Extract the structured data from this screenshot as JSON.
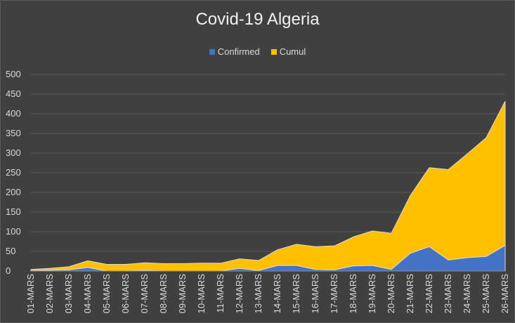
{
  "chart_data": {
    "type": "area",
    "title": "Covid-19 Algeria",
    "xlabel": "",
    "ylabel": "",
    "ylim": [
      0,
      500
    ],
    "yticks": [
      0,
      50,
      100,
      150,
      200,
      250,
      300,
      350,
      400,
      450,
      500
    ],
    "grid": true,
    "legend_position": "top",
    "categories": [
      "01-MARS",
      "02-MARS",
      "03-MARS",
      "04-MARS",
      "05-MARS",
      "06-MARS",
      "07-MARS",
      "08-MARS",
      "09-MARS",
      "10-MARS",
      "11-MARS",
      "12-MARS",
      "13-MARS",
      "14-MARS",
      "15-MARS",
      "16-MARS",
      "17-MARS",
      "18-MARS",
      "19-MARS",
      "20-MARS",
      "21-MARS",
      "22-MARS",
      "23-MARS",
      "24-MARS",
      "25-MARS",
      "26-MARS"
    ],
    "series": [
      {
        "name": "Confirmed",
        "color": "#4472C4",
        "values": [
          1,
          2,
          3,
          9,
          0,
          0,
          2,
          0,
          0,
          0,
          0,
          7,
          1,
          14,
          14,
          4,
          3,
          13,
          14,
          4,
          45,
          62,
          28,
          34,
          37,
          65
        ]
      },
      {
        "name": "Cumul",
        "color": "#FFC000",
        "values": [
          3,
          5,
          8,
          17,
          17,
          17,
          19,
          19,
          19,
          20,
          20,
          24,
          26,
          40,
          54,
          58,
          61,
          74,
          88,
          92,
          147,
          201,
          230,
          264,
          302,
          367
        ]
      }
    ]
  }
}
